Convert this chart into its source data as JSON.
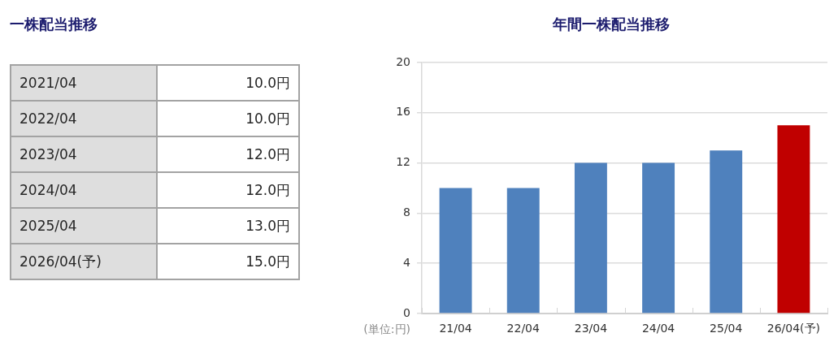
{
  "chart_data": [
    {
      "type": "other",
      "title": "一株配当推移",
      "categories": [
        "2021/04",
        "2022/04",
        "2023/04",
        "2024/04",
        "2025/04",
        "2026/04(予)"
      ],
      "value_labels": [
        "10.0円",
        "10.0円",
        "12.0円",
        "12.0円",
        "13.0円",
        "15.0円"
      ]
    },
    {
      "type": "bar",
      "title": "年間一株配当推移",
      "categories": [
        "21/04",
        "22/04",
        "23/04",
        "24/04",
        "25/04",
        "26/04(予)"
      ],
      "values": [
        10,
        10,
        12,
        12,
        13,
        15
      ],
      "colors": [
        "#4f81bd",
        "#4f81bd",
        "#4f81bd",
        "#4f81bd",
        "#4f81bd",
        "#c00000"
      ],
      "ylim": [
        0,
        20
      ],
      "yticks": [
        0,
        4,
        8,
        12,
        16,
        20
      ],
      "grid": "y",
      "annotations": [
        "(単位:円)"
      ]
    }
  ]
}
